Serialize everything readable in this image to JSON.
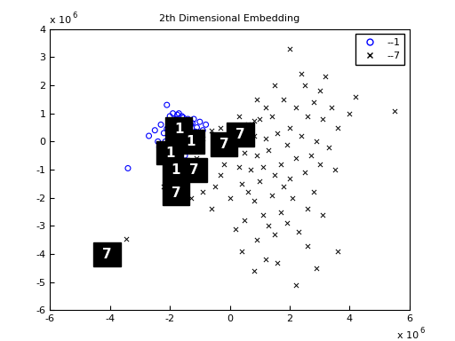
{
  "chart_data": {
    "type": "scatter",
    "title": "2th Dimensional Embedding",
    "xlim": [
      -6,
      6
    ],
    "xticks": [
      -6,
      -4,
      -2,
      0,
      2,
      4,
      6
    ],
    "ylim": [
      -6,
      4
    ],
    "yticks": [
      -6,
      -5,
      -4,
      -3,
      -2,
      -1,
      0,
      1,
      2,
      3,
      4
    ],
    "grid": false,
    "legend": "upper right",
    "annotations": [
      {
        "text": "x 10",
        "exponent": "6",
        "axis": "y"
      },
      {
        "text": "x 10",
        "exponent": "6",
        "axis": "x"
      }
    ],
    "series": [
      {
        "name": "--1",
        "color": "#0000ff",
        "marker": "circle",
        "x": [
          -3.4,
          -2.7,
          -2.5,
          -2.3,
          -2.2,
          -2.1,
          -2.0,
          -1.9,
          -1.8,
          -1.7,
          -1.6,
          -1.5,
          -1.4,
          -1.3,
          -1.2,
          -1.1,
          -1.0,
          -0.9,
          -1.85,
          -1.75,
          -1.65,
          -1.55,
          -1.45,
          -1.95,
          -2.05,
          -2.15,
          -1.9,
          -1.8,
          -1.7,
          -1.6,
          -1.5,
          -2.0,
          -1.85,
          -1.4,
          -1.3,
          -1.2,
          -2.25,
          -2.35,
          -1.75,
          -1.65,
          -1.55,
          -1.45,
          -1.35,
          -1.25,
          -1.15,
          -2.4,
          -0.8,
          -1.05,
          -1.95,
          -2.1
        ],
        "y": [
          -0.95,
          0.2,
          0.4,
          0.6,
          0.3,
          1.3,
          0.9,
          1.0,
          0.8,
          1.0,
          0.9,
          0.7,
          0.8,
          0.6,
          0.8,
          0.5,
          0.7,
          0.4,
          0.5,
          0.3,
          0.6,
          0.2,
          0.1,
          0.2,
          -0.1,
          0.0,
          -0.4,
          -0.6,
          -0.3,
          -0.9,
          -0.5,
          -1.1,
          -1.3,
          -0.2,
          0.3,
          0.1,
          -0.5,
          -0.2,
          0.95,
          0.75,
          0.85,
          0.55,
          0.45,
          0.65,
          0.35,
          0.0,
          0.6,
          0.15,
          0.65,
          0.45
        ]
      },
      {
        "name": "--7",
        "color": "#000000",
        "marker": "x",
        "x": [
          2.0,
          2.5,
          3.2,
          4.2,
          5.5,
          3.0,
          2.8,
          3.4,
          2.2,
          1.8,
          1.5,
          0.9,
          0.3,
          0.6,
          1.0,
          1.4,
          2.6,
          3.1,
          3.6,
          4.0,
          2.0,
          1.6,
          1.2,
          0.8,
          0.2,
          -0.3,
          -0.6,
          -0.9,
          2.4,
          2.9,
          3.3,
          1.9,
          1.3,
          0.9,
          0.5,
          0.1,
          -0.4,
          2.2,
          2.7,
          1.7,
          1.1,
          0.7,
          0.3,
          -0.2,
          1.5,
          2.0,
          2.5,
          1.0,
          0.4,
          -0.5,
          -0.9,
          -1.3,
          -1.7,
          -2.2,
          0.0,
          0.8,
          1.4,
          2.1,
          1.7,
          1.1,
          0.5,
          -0.6,
          1.9,
          2.3,
          1.5,
          0.9,
          0.4,
          1.2,
          1.6,
          0.8,
          2.2,
          3.6,
          2.9,
          2.6,
          3.1,
          2.8,
          3.5,
          -3.45,
          0.8,
          1.2,
          2.4,
          3.0,
          1.8,
          0.6,
          -0.3,
          0.2,
          1.3,
          2.6,
          0.0,
          -1.1
        ],
        "y": [
          3.3,
          2.0,
          2.3,
          1.6,
          1.1,
          1.8,
          1.4,
          1.2,
          1.2,
          1.5,
          2.0,
          1.5,
          0.9,
          0.6,
          0.8,
          0.9,
          0.9,
          0.8,
          0.5,
          1.0,
          0.5,
          0.3,
          0.1,
          0.2,
          0.3,
          0.5,
          0.4,
          0.1,
          0.2,
          0.0,
          -0.2,
          -0.1,
          -0.3,
          -0.5,
          -0.4,
          -0.2,
          -0.3,
          -0.6,
          -0.5,
          -0.8,
          -0.9,
          -1.0,
          -0.9,
          -0.8,
          -1.2,
          -1.3,
          -1.1,
          -1.4,
          -1.5,
          -1.6,
          -1.8,
          -2.0,
          -1.9,
          -1.6,
          -2.0,
          -2.1,
          -1.9,
          -2.0,
          -2.5,
          -2.6,
          -2.8,
          -2.4,
          -2.9,
          -3.2,
          -3.3,
          -3.5,
          -3.9,
          -4.2,
          -4.3,
          -4.6,
          -5.1,
          -3.9,
          -4.5,
          -3.7,
          -2.6,
          -1.8,
          -1.0,
          -3.45,
          0.75,
          1.2,
          2.4,
          -0.8,
          -1.6,
          -1.8,
          -1.2,
          -3.1,
          -3.0,
          -2.4,
          0.0,
          -0.6
        ]
      }
    ],
    "thumbnails": [
      {
        "x": -1.7,
        "y": 0.45,
        "digit": "1"
      },
      {
        "x": -1.3,
        "y": 0.0,
        "digit": "1"
      },
      {
        "x": -2.0,
        "y": -0.4,
        "digit": "1"
      },
      {
        "x": -1.8,
        "y": -1.0,
        "digit": "1"
      },
      {
        "x": -1.2,
        "y": -1.0,
        "digit": "7"
      },
      {
        "x": -1.8,
        "y": -1.85,
        "digit": "7"
      },
      {
        "x": 0.35,
        "y": 0.25,
        "digit": "7"
      },
      {
        "x": -0.2,
        "y": -0.1,
        "digit": "7"
      },
      {
        "x": -4.1,
        "y": -4.0,
        "digit": "7"
      }
    ]
  }
}
